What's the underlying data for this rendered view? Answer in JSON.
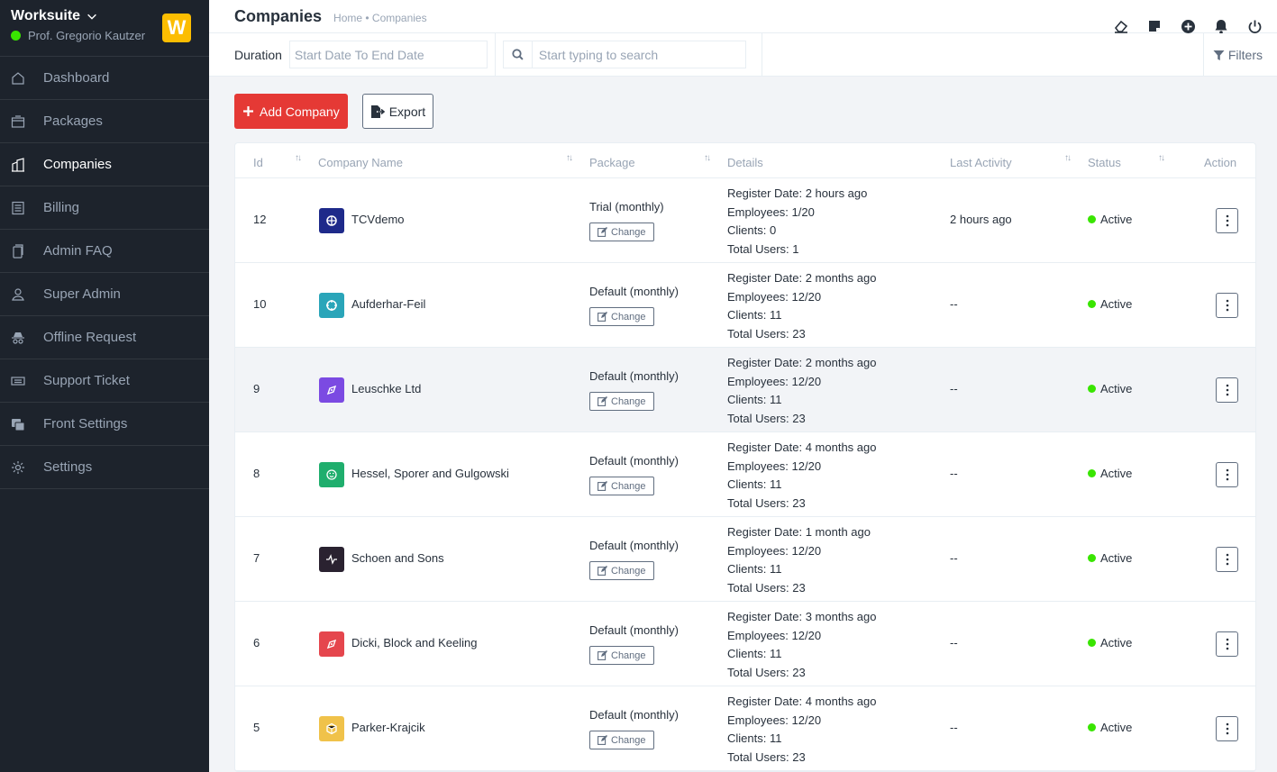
{
  "sidebar": {
    "brand": "Worksuite",
    "user": "Prof. Gregorio Kautzer",
    "logo_letter": "W",
    "items": [
      {
        "label": "Dashboard",
        "icon": "house-icon"
      },
      {
        "label": "Packages",
        "icon": "box-icon"
      },
      {
        "label": "Companies",
        "icon": "buildings-icon"
      },
      {
        "label": "Billing",
        "icon": "receipt-icon"
      },
      {
        "label": "Admin FAQ",
        "icon": "document-icon"
      },
      {
        "label": "Super Admin",
        "icon": "person-icon"
      },
      {
        "label": "Offline Request",
        "icon": "incognito-icon"
      },
      {
        "label": "Support Ticket",
        "icon": "ticket-icon"
      },
      {
        "label": "Front Settings",
        "icon": "front-settings-icon"
      },
      {
        "label": "Settings",
        "icon": "gear-icon"
      }
    ],
    "active": "Companies"
  },
  "header": {
    "title": "Companies",
    "breadcrumb": "Home • Companies"
  },
  "filters": {
    "duration_label": "Duration",
    "duration_placeholder": "Start Date To End Date",
    "search_placeholder": "Start typing to search",
    "filters_label": "Filters"
  },
  "actions": {
    "add_label": "Add Company",
    "export_label": "Export"
  },
  "table": {
    "headers": {
      "id": "Id",
      "name": "Company Name",
      "package": "Package",
      "details": "Details",
      "last_activity": "Last Activity",
      "status": "Status",
      "action": "Action"
    },
    "change_label": "Change",
    "rows": [
      {
        "id": "12",
        "name": "TCVdemo",
        "logo_color": "#1e2a8a",
        "package": "Trial (monthly)",
        "details": [
          "Register Date: 2 hours ago",
          "Employees: 1/20",
          "Clients: 0",
          "Total Users: 1"
        ],
        "last": "2 hours ago",
        "status": "Active"
      },
      {
        "id": "10",
        "name": "Aufderhar-Feil",
        "logo_color": "#2aa5b9",
        "package": "Default (monthly)",
        "details": [
          "Register Date: 2 months ago",
          "Employees: 12/20",
          "Clients: 11",
          "Total Users: 23"
        ],
        "last": "--",
        "status": "Active"
      },
      {
        "id": "9",
        "name": "Leuschke Ltd",
        "logo_color": "#7b4ae2",
        "package": "Default (monthly)",
        "details": [
          "Register Date: 2 months ago",
          "Employees: 12/20",
          "Clients: 11",
          "Total Users: 23"
        ],
        "last": "--",
        "status": "Active"
      },
      {
        "id": "8",
        "name": "Hessel, Sporer and Gulgowski",
        "logo_color": "#1fae6d",
        "package": "Default (monthly)",
        "details": [
          "Register Date: 4 months ago",
          "Employees: 12/20",
          "Clients: 11",
          "Total Users: 23"
        ],
        "last": "--",
        "status": "Active"
      },
      {
        "id": "7",
        "name": "Schoen and Sons",
        "logo_color": "#2a2230",
        "package": "Default (monthly)",
        "details": [
          "Register Date: 1 month ago",
          "Employees: 12/20",
          "Clients: 11",
          "Total Users: 23"
        ],
        "last": "--",
        "status": "Active"
      },
      {
        "id": "6",
        "name": "Dicki, Block and Keeling",
        "logo_color": "#e5464d",
        "package": "Default (monthly)",
        "details": [
          "Register Date: 3 months ago",
          "Employees: 12/20",
          "Clients: 11",
          "Total Users: 23"
        ],
        "last": "--",
        "status": "Active"
      },
      {
        "id": "5",
        "name": "Parker-Krajcik",
        "logo_color": "#f0c24a",
        "package": "Default (monthly)",
        "details": [
          "Register Date: 4 months ago",
          "Employees: 12/20",
          "Clients: 11",
          "Total Users: 23"
        ],
        "last": "--",
        "status": "Active"
      }
    ]
  },
  "colors": {
    "sidebar_bg": "#1d232c",
    "accent_red": "#e53935",
    "status_green": "#39e500",
    "logo_yellow": "#fcbd01"
  }
}
